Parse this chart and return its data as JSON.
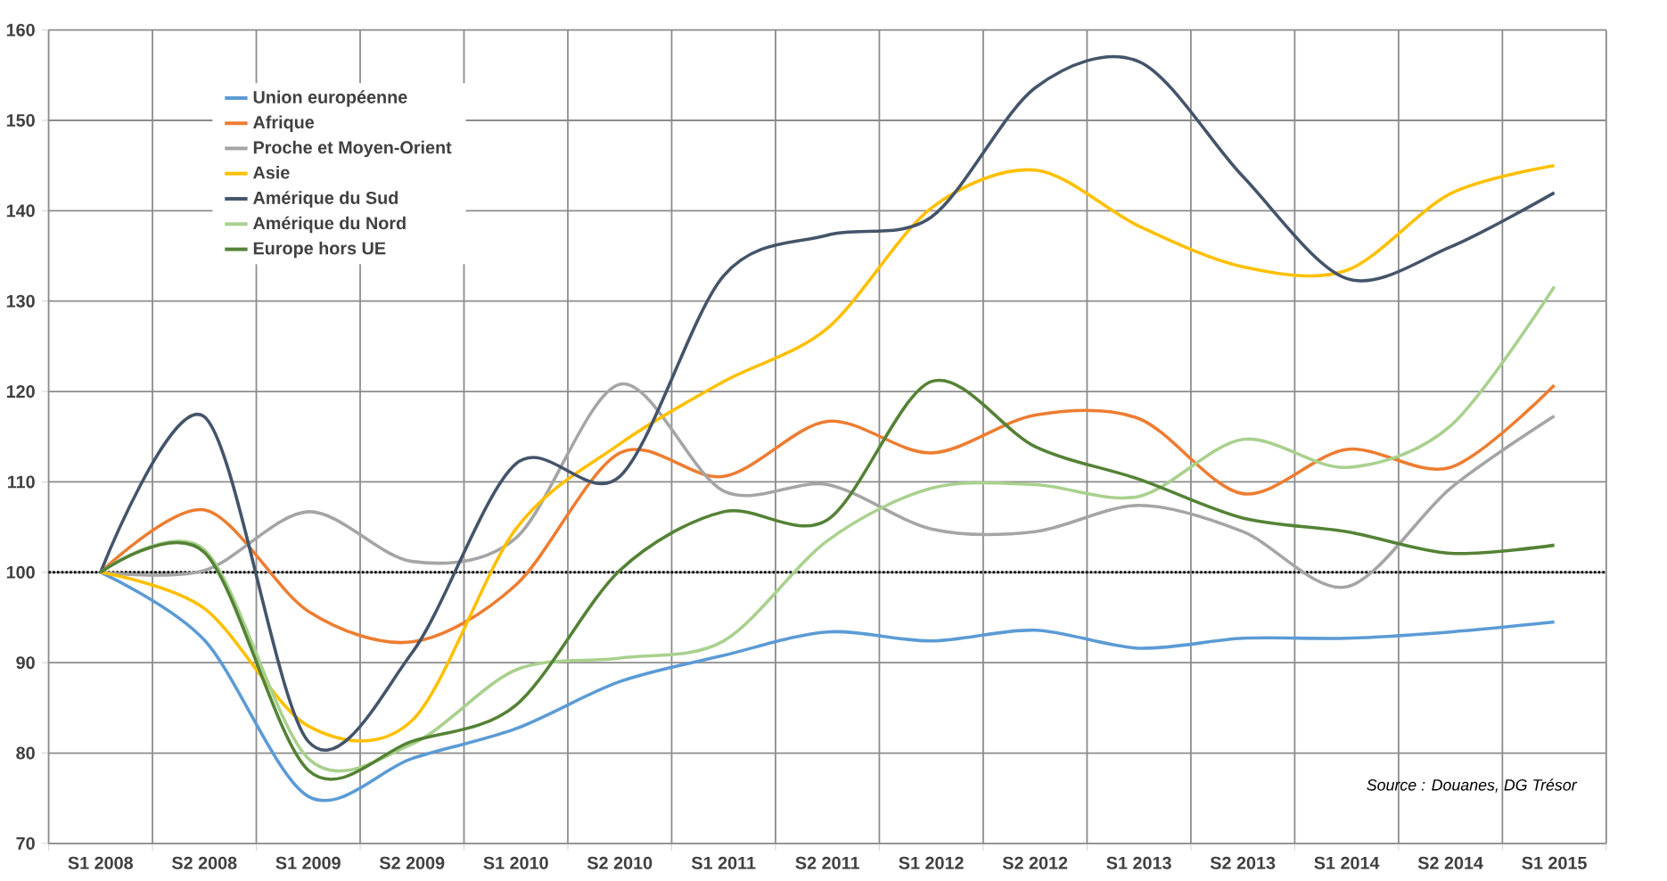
{
  "chart_data": {
    "type": "line",
    "categories": [
      "S1 2008",
      "S2 2008",
      "S1 2009",
      "S2 2009",
      "S1 2010",
      "S2 2010",
      "S1 2011",
      "S2 2011",
      "S1 2012",
      "S2 2012",
      "S1 2013",
      "S2 2013",
      "S1 2014",
      "S2 2014",
      "S1 2015"
    ],
    "series": [
      {
        "name": "Union européenne",
        "color": "#5b9bd5",
        "values": [
          100,
          92.5,
          75.2,
          79.4,
          82.7,
          87.9,
          90.8,
          93.4,
          92.4,
          93.6,
          91.6,
          92.7,
          92.7,
          93.4,
          94.5
        ]
      },
      {
        "name": "Afrique",
        "color": "#ed7d31",
        "values": [
          100,
          106.9,
          95.7,
          92.3,
          98.6,
          113.2,
          110.6,
          116.7,
          113.2,
          117.4,
          117,
          108.7,
          113.6,
          111.6,
          120.7
        ]
      },
      {
        "name": "Proche et Moyen-Orient",
        "color": "#a5a5a5",
        "values": [
          100,
          100.2,
          106.7,
          101.2,
          103.8,
          120.8,
          109,
          109.7,
          104.8,
          104.5,
          107.4,
          104.5,
          98.4,
          109.3,
          117.3
        ]
      },
      {
        "name": "Asie",
        "color": "#ffc000",
        "values": [
          100,
          96,
          83,
          83.6,
          104.8,
          114.2,
          121.1,
          127,
          140.3,
          144.5,
          138.3,
          133.8,
          133.4,
          141.9,
          145
        ]
      },
      {
        "name": "Amérique du Sud",
        "color": "#44546a",
        "values": [
          100,
          117.2,
          81.3,
          91.1,
          112,
          110.6,
          132.8,
          137.3,
          139.3,
          153.6,
          156.5,
          143.8,
          132.5,
          136,
          142
        ]
      },
      {
        "name": "Amérique du Nord",
        "color": "#a9d18e",
        "values": [
          100,
          102.5,
          79.4,
          81,
          89.2,
          90.5,
          92.4,
          103.5,
          109.3,
          109.7,
          108.4,
          114.7,
          111.6,
          116.2,
          131.6
        ]
      },
      {
        "name": "Europe hors UE",
        "color": "#548235",
        "values": [
          100,
          102.2,
          78.1,
          81.3,
          85.3,
          100.2,
          106.7,
          105.8,
          121.1,
          113.9,
          110.3,
          106,
          104.5,
          102.1,
          103
        ]
      }
    ],
    "ylim": [
      70,
      160
    ],
    "yticks": [
      70,
      80,
      90,
      100,
      110,
      120,
      130,
      140,
      150,
      160
    ],
    "grid": true,
    "legend": "top left",
    "marker": "none",
    "line_style": "solid",
    "ref_lines": [
      {
        "axis": "y",
        "value": 100,
        "color": "#000000",
        "line_style": "dotted"
      }
    ],
    "annotations": [
      "Source : Douanes, DG Trésor"
    ]
  }
}
